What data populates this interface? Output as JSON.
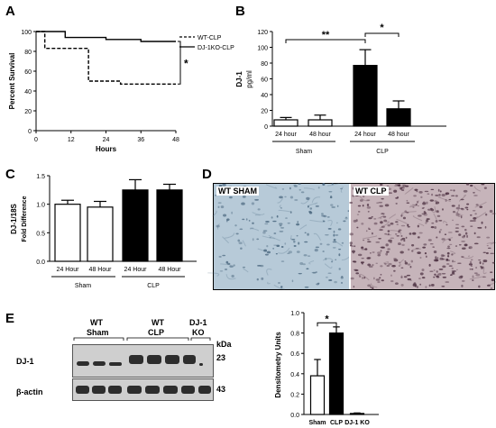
{
  "panels": {
    "a": "A",
    "b": "B",
    "c": "C",
    "d": "D",
    "e": "E"
  },
  "chart_data": [
    {
      "id": "A",
      "type": "line",
      "xlabel": "Hours",
      "ylabel": "Percent Survival",
      "xlim": [
        0,
        48
      ],
      "ylim": [
        0,
        100
      ],
      "xticks": [
        "0",
        "12",
        "24",
        "36",
        "48"
      ],
      "yticks": [
        "0",
        "20",
        "40",
        "60",
        "80",
        "100"
      ],
      "legend_position": "right",
      "series": [
        {
          "name": "WT-CLP",
          "style": "dashed",
          "steps": [
            [
              0,
              100
            ],
            [
              3,
              100
            ],
            [
              3,
              83
            ],
            [
              18,
              83
            ],
            [
              18,
              50
            ],
            [
              29,
              50
            ],
            [
              29,
              47
            ],
            [
              48,
              47
            ]
          ]
        },
        {
          "name": "DJ-1KO-CLP",
          "style": "solid",
          "steps": [
            [
              0,
              100
            ],
            [
              10,
              100
            ],
            [
              10,
              94
            ],
            [
              24,
              94
            ],
            [
              24,
              92
            ],
            [
              36,
              92
            ],
            [
              36,
              90
            ],
            [
              48,
              90
            ]
          ]
        }
      ],
      "annotations": [
        "*"
      ]
    },
    {
      "id": "B",
      "type": "bar",
      "ylabel": "DJ-1",
      "yunit": "pg/ml",
      "ylim": [
        0,
        120
      ],
      "yticks": [
        "0",
        "20",
        "40",
        "60",
        "80",
        "100",
        "120"
      ],
      "categories": [
        "24 hour",
        "48 hour",
        "24 hour",
        "48 hour"
      ],
      "groups": [
        "Sham",
        "CLP"
      ],
      "values": [
        8,
        8,
        77,
        22
      ],
      "errors": [
        3,
        6,
        20,
        10
      ],
      "fills": [
        "#ffffff",
        "#ffffff",
        "#000000",
        "#000000"
      ],
      "annotations": [
        "**",
        "*"
      ]
    },
    {
      "id": "C",
      "type": "bar",
      "ylabel": "DJ-1/18S",
      "ysublabel": "Fold Difference",
      "ylim": [
        0,
        1.5
      ],
      "yticks": [
        "0.0",
        "0.5",
        "1.0",
        "1.5"
      ],
      "categories": [
        "24 Hour",
        "48 Hour",
        "24 Hour",
        "48 Hour"
      ],
      "groups": [
        "Sham",
        "CLP"
      ],
      "values": [
        1.0,
        0.95,
        1.25,
        1.25
      ],
      "errors": [
        0.07,
        0.1,
        0.18,
        0.1
      ],
      "fills": [
        "#ffffff",
        "#ffffff",
        "#000000",
        "#000000"
      ]
    },
    {
      "id": "E-densitometry",
      "type": "bar",
      "ylabel": "Densitometry Units",
      "ylim": [
        0,
        1.0
      ],
      "yticks": [
        "0.0",
        "0.2",
        "0.4",
        "0.6",
        "0.8",
        "1.0"
      ],
      "categories": [
        "Sham",
        "CLP",
        "DJ-1 KO"
      ],
      "values": [
        0.38,
        0.8,
        0.01
      ],
      "errors": [
        0.16,
        0.06,
        0.005
      ],
      "fills": [
        "#ffffff",
        "#000000",
        "#000000"
      ],
      "annotations": [
        "*"
      ]
    }
  ],
  "micro": {
    "left_label": "WT SHAM",
    "right_label": "WT CLP",
    "left_color": "#b7cad8",
    "right_color": "#c6b4ba"
  },
  "blot": {
    "groups": [
      {
        "line1": "WT",
        "line2": "Sham"
      },
      {
        "line1": "WT",
        "line2": "CLP"
      },
      {
        "line1": "DJ-1",
        "line2": "KO"
      }
    ],
    "kda_label": "kDa",
    "rows": [
      {
        "name": "DJ-1",
        "kda": "23"
      },
      {
        "name": "β-actin",
        "kda": "43"
      }
    ]
  }
}
